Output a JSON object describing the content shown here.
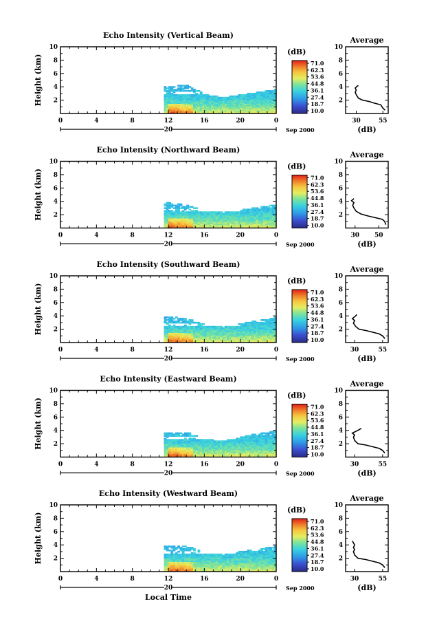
{
  "chart_data": [
    {
      "type": "heatmap",
      "title": "Echo Intensity (Vertical Beam)",
      "ylabel": "Height (km)",
      "xlabel": "",
      "x_ticks": [
        "0",
        "4",
        "8",
        "12",
        "16",
        "20",
        "0"
      ],
      "y_ticks": [
        "2",
        "4",
        "6",
        "8",
        "10"
      ],
      "xlim": [
        0,
        24
      ],
      "ylim": [
        0,
        10
      ],
      "date_label": "Sep 2000",
      "day_label": "20",
      "colorbar": {
        "unit": "(dB)",
        "ticks": [
          "71.0",
          "62.3",
          "53.6",
          "44.8",
          "36.1",
          "27.4",
          "18.7",
          "10.0"
        ]
      },
      "echo": {
        "start_hour": 11.5,
        "tops": [
          [
            11.5,
            4.0
          ],
          [
            14.0,
            4.2
          ],
          [
            16.0,
            2.8
          ],
          [
            18.0,
            2.4
          ],
          [
            20.0,
            2.8
          ],
          [
            22.0,
            3.2
          ],
          [
            24.0,
            3.6
          ]
        ],
        "upper_layer": [
          3.4,
          4.3
        ],
        "core": [
          11.8,
          14.5
        ]
      },
      "average": {
        "title": "Average",
        "xlabel": "(dB)",
        "x_ticks": [
          "30",
          "55"
        ],
        "xlim": [
          20,
          60
        ],
        "y_ticks": [
          "2",
          "4",
          "6",
          "8",
          "10"
        ],
        "ylim": [
          0,
          10
        ],
        "profile": [
          [
            57,
            0.5
          ],
          [
            55,
            0.8
          ],
          [
            53,
            1.3
          ],
          [
            46,
            1.6
          ],
          [
            42,
            1.8
          ],
          [
            36,
            2.0
          ],
          [
            32,
            2.3
          ],
          [
            30,
            2.8
          ],
          [
            29,
            3.2
          ],
          [
            30,
            3.5
          ],
          [
            29,
            3.8
          ],
          [
            31,
            4.1
          ],
          [
            32,
            4.2
          ]
        ]
      }
    },
    {
      "type": "heatmap",
      "title": "Echo Intensity (Northward Beam)",
      "ylabel": "Height (km)",
      "xlabel": "",
      "x_ticks": [
        "0",
        "4",
        "8",
        "12",
        "16",
        "20",
        "0"
      ],
      "y_ticks": [
        "2",
        "4",
        "6",
        "8",
        "10"
      ],
      "xlim": [
        0,
        24
      ],
      "ylim": [
        0,
        10
      ],
      "date_label": "Sep 2000",
      "day_label": "20",
      "colorbar": {
        "unit": "(dB)",
        "ticks": [
          "71.0",
          "62.3",
          "53.6",
          "44.8",
          "36.1",
          "27.4",
          "18.7",
          "10.0"
        ]
      },
      "echo": {
        "start_hour": 11.5,
        "tops": [
          [
            11.5,
            3.8
          ],
          [
            14.0,
            3.4
          ],
          [
            16.0,
            2.6
          ],
          [
            18.0,
            2.3
          ],
          [
            20.0,
            2.7
          ],
          [
            22.0,
            3.1
          ],
          [
            24.0,
            3.5
          ]
        ],
        "upper_layer": [
          2.9,
          3.8
        ],
        "core": [
          11.8,
          14.5
        ]
      },
      "average": {
        "title": "Average",
        "xlabel": "(dB)",
        "x_ticks": [
          "30",
          "50"
        ],
        "xlim": [
          22,
          58
        ],
        "y_ticks": [
          "2",
          "4",
          "6",
          "8",
          "10"
        ],
        "ylim": [
          0,
          10
        ],
        "profile": [
          [
            56,
            0.5
          ],
          [
            55,
            1.0
          ],
          [
            53,
            1.3
          ],
          [
            46,
            1.6
          ],
          [
            41,
            1.8
          ],
          [
            35,
            2.1
          ],
          [
            31,
            2.5
          ],
          [
            29,
            3.0
          ],
          [
            28,
            3.4
          ],
          [
            29,
            3.8
          ],
          [
            27,
            4.1
          ],
          [
            29,
            4.4
          ]
        ]
      }
    },
    {
      "type": "heatmap",
      "title": "Echo Intensity (Southward Beam)",
      "ylabel": "Height (km)",
      "xlabel": "",
      "x_ticks": [
        "0",
        "4",
        "8",
        "12",
        "16",
        "20",
        "0"
      ],
      "y_ticks": [
        "2",
        "4",
        "6",
        "8",
        "10"
      ],
      "xlim": [
        0,
        24
      ],
      "ylim": [
        0,
        10
      ],
      "date_label": "Sep 2000",
      "day_label": "20",
      "colorbar": {
        "unit": "(dB)",
        "ticks": [
          "71.0",
          "62.3",
          "53.6",
          "44.8",
          "36.1",
          "27.4",
          "18.7",
          "10.0"
        ]
      },
      "echo": {
        "start_hour": 11.5,
        "tops": [
          [
            11.5,
            3.9
          ],
          [
            14.0,
            3.6
          ],
          [
            16.0,
            2.6
          ],
          [
            18.0,
            2.3
          ],
          [
            20.0,
            2.8
          ],
          [
            22.0,
            3.3
          ],
          [
            24.0,
            3.8
          ]
        ],
        "upper_layer": [
          3.0,
          3.9
        ],
        "core": [
          11.8,
          14.5
        ]
      },
      "average": {
        "title": "Average",
        "xlabel": "(dB)",
        "x_ticks": [
          "30",
          "55"
        ],
        "xlim": [
          22,
          60
        ],
        "y_ticks": [
          "2",
          "4",
          "6",
          "8",
          "10"
        ],
        "ylim": [
          0,
          10
        ],
        "profile": [
          [
            57,
            0.6
          ],
          [
            55,
            1.0
          ],
          [
            52,
            1.3
          ],
          [
            45,
            1.6
          ],
          [
            40,
            1.8
          ],
          [
            34,
            2.0
          ],
          [
            31,
            2.4
          ],
          [
            29,
            2.9
          ],
          [
            30,
            3.3
          ],
          [
            28,
            3.6
          ],
          [
            31,
            4.0
          ],
          [
            32,
            4.2
          ]
        ]
      }
    },
    {
      "type": "heatmap",
      "title": "Echo Intensity (Eastward Beam)",
      "ylabel": "Height (km)",
      "xlabel": "",
      "x_ticks": [
        "0",
        "4",
        "8",
        "12",
        "16",
        "20",
        "0"
      ],
      "y_ticks": [
        "2",
        "4",
        "6",
        "8",
        "10"
      ],
      "xlim": [
        0,
        24
      ],
      "ylim": [
        0,
        10
      ],
      "date_label": "Sep 2000",
      "day_label": "20",
      "colorbar": {
        "unit": "(dB)",
        "ticks": [
          "71.0",
          "62.3",
          "53.6",
          "44.8",
          "36.1",
          "27.4",
          "18.7",
          "10.0"
        ]
      },
      "echo": {
        "start_hour": 11.5,
        "tops": [
          [
            11.5,
            3.6
          ],
          [
            14.0,
            3.7
          ],
          [
            16.0,
            2.6
          ],
          [
            18.0,
            2.4
          ],
          [
            20.0,
            3.0
          ],
          [
            22.0,
            3.5
          ],
          [
            24.0,
            3.9
          ]
        ],
        "upper_layer": [
          3.2,
          4.0
        ],
        "core": [
          11.8,
          14.5
        ]
      },
      "average": {
        "title": "Average",
        "xlabel": "(dB)",
        "x_ticks": [
          "30",
          "55"
        ],
        "xlim": [
          22,
          60
        ],
        "y_ticks": [
          "2",
          "4",
          "6",
          "8",
          "10"
        ],
        "ylim": [
          0,
          10
        ],
        "profile": [
          [
            57,
            0.6
          ],
          [
            55,
            1.0
          ],
          [
            52,
            1.3
          ],
          [
            45,
            1.6
          ],
          [
            40,
            1.8
          ],
          [
            33,
            2.0
          ],
          [
            30,
            2.5
          ],
          [
            29,
            3.0
          ],
          [
            30,
            3.3
          ],
          [
            28,
            3.6
          ],
          [
            33,
            4.0
          ],
          [
            36,
            4.3
          ]
        ]
      }
    },
    {
      "type": "heatmap",
      "title": "Echo Intensity (Westward Beam)",
      "ylabel": "Height (km)",
      "xlabel": "Local Time",
      "x_ticks": [
        "0",
        "4",
        "8",
        "12",
        "16",
        "20",
        "0"
      ],
      "y_ticks": [
        "2",
        "4",
        "6",
        "8",
        "10"
      ],
      "xlim": [
        0,
        24
      ],
      "ylim": [
        0,
        10
      ],
      "date_label": "Sep 2000",
      "day_label": "20",
      "colorbar": {
        "unit": "(dB)",
        "ticks": [
          "71.0",
          "62.3",
          "53.6",
          "44.8",
          "36.1",
          "27.4",
          "18.7",
          "10.0"
        ]
      },
      "echo": {
        "start_hour": 11.5,
        "tops": [
          [
            11.5,
            3.8
          ],
          [
            14.0,
            3.8
          ],
          [
            16.0,
            2.7
          ],
          [
            18.0,
            2.5
          ],
          [
            20.0,
            3.0
          ],
          [
            22.0,
            3.4
          ],
          [
            24.0,
            3.8
          ]
        ],
        "upper_layer": [
          3.1,
          4.0
        ],
        "core": [
          11.8,
          14.5
        ]
      },
      "average": {
        "title": "Average",
        "xlabel": "(dB)",
        "x_ticks": [
          "30",
          "55"
        ],
        "xlim": [
          22,
          60
        ],
        "y_ticks": [
          "2",
          "4",
          "6",
          "8",
          "10"
        ],
        "ylim": [
          0,
          10
        ],
        "profile": [
          [
            57,
            0.6
          ],
          [
            55,
            1.0
          ],
          [
            52,
            1.3
          ],
          [
            45,
            1.6
          ],
          [
            40,
            1.8
          ],
          [
            33,
            2.0
          ],
          [
            30,
            2.5
          ],
          [
            29,
            3.0
          ],
          [
            30,
            3.3
          ],
          [
            29,
            3.6
          ],
          [
            30,
            4.0
          ],
          [
            28,
            4.6
          ]
        ]
      }
    }
  ]
}
